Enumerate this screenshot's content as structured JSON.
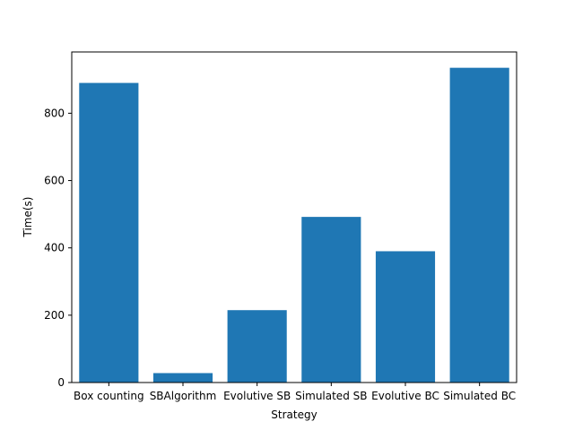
{
  "chart_data": {
    "type": "bar",
    "title": "",
    "xlabel": "Strategy",
    "ylabel": "Time(s)",
    "categories": [
      "Box counting",
      "SBAlgorithm",
      "Evolutive SB",
      "Simulated SB",
      "Evolutive BC",
      "Simulated BC"
    ],
    "values": [
      890,
      28,
      215,
      492,
      390,
      935
    ],
    "ylim": [
      0,
      982
    ],
    "yticks": [
      0,
      200,
      400,
      600,
      800
    ],
    "bar_color": "#1f77b4",
    "grid": false,
    "legend": "none"
  }
}
